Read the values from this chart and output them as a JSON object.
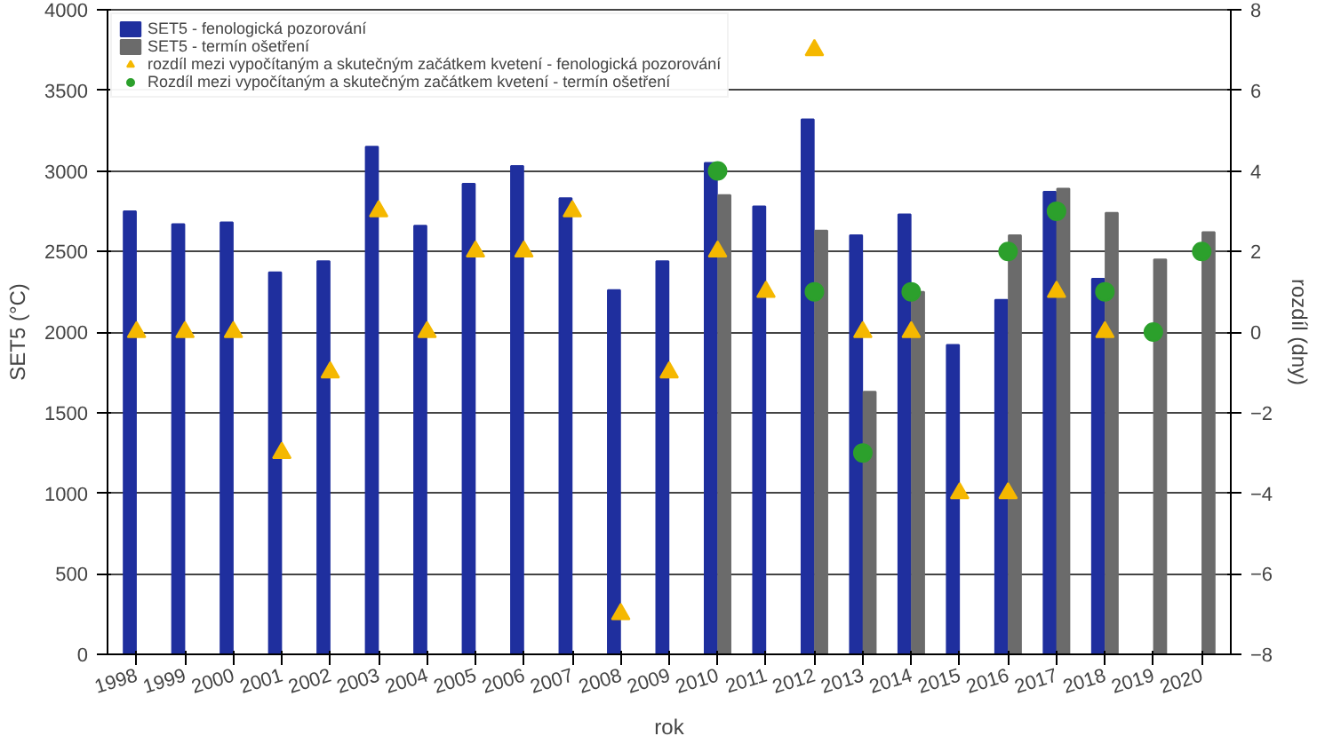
{
  "chart_data": {
    "type": "bar",
    "xlabel": "rok",
    "ylabel": "SET5 (°C)",
    "y2label": "rozdíl (dny)",
    "categories": [
      "1998",
      "1999",
      "2000",
      "2001",
      "2002",
      "2003",
      "2004",
      "2005",
      "2006",
      "2007",
      "2008",
      "2009",
      "2010",
      "2011",
      "2012",
      "2013",
      "2014",
      "2015",
      "2016",
      "2017",
      "2018",
      "2019",
      "2020"
    ],
    "series": [
      {
        "name": "SET5 - fenologická pozorování",
        "color": "#1f2f9e",
        "values": [
          2750,
          2670,
          2680,
          2370,
          2440,
          3150,
          2660,
          2920,
          3030,
          2830,
          2260,
          2440,
          3050,
          2780,
          3320,
          2600,
          2730,
          1920,
          2200,
          2870,
          2330,
          null,
          null
        ]
      },
      {
        "name": "SET5 - termín ošetření",
        "color": "#6b6b6b",
        "values": [
          null,
          null,
          null,
          null,
          null,
          null,
          null,
          null,
          null,
          null,
          null,
          null,
          2850,
          null,
          2630,
          1630,
          2250,
          null,
          2600,
          2890,
          2740,
          2450,
          2620
        ]
      },
      {
        "name": "rozdíl mezi vypočítaným a skutečným začátkem kvetení - fenologická pozorování",
        "type": "scatter",
        "marker": "triangle",
        "axis": "y2",
        "color": "#f5b800",
        "values": [
          0,
          0,
          0,
          -3,
          -1,
          3,
          0,
          2,
          2,
          3,
          -7,
          -1,
          2,
          1,
          7,
          0,
          0,
          -4,
          -4,
          1,
          0,
          null,
          null
        ]
      },
      {
        "name": "Rozdíl mezi vypočítaným a skutečným začátkem kvetení - termín ošetření",
        "type": "scatter",
        "marker": "circle",
        "axis": "y2",
        "color": "#2ca02c",
        "values": [
          null,
          null,
          null,
          null,
          null,
          null,
          null,
          null,
          null,
          null,
          null,
          null,
          4,
          null,
          1,
          -3,
          1,
          null,
          2,
          3,
          1,
          0,
          2
        ]
      }
    ],
    "ylim": [
      0,
      4000
    ],
    "yticks": [
      0,
      500,
      1000,
      1500,
      2000,
      2500,
      3000,
      3500,
      4000
    ],
    "y2lim": [
      -8,
      8
    ],
    "y2ticks": [
      -8,
      -6,
      -4,
      -2,
      0,
      2,
      4,
      6,
      8
    ],
    "grid": "y",
    "legend": "top left"
  }
}
